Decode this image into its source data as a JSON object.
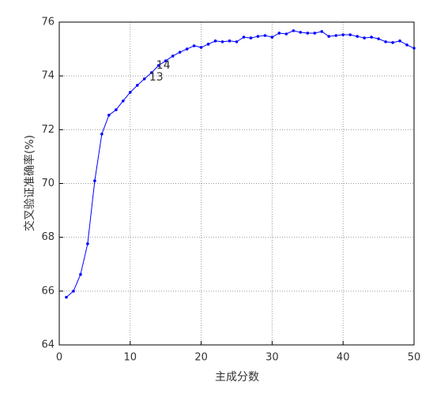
{
  "chart_data": {
    "type": "line",
    "x_label": "主成分数",
    "y_label": "交叉验证准确率(%)",
    "x": [
      1,
      2,
      3,
      4,
      5,
      6,
      7,
      8,
      9,
      10,
      11,
      12,
      13,
      14,
      15,
      16,
      17,
      18,
      19,
      20,
      21,
      22,
      23,
      24,
      25,
      26,
      27,
      28,
      29,
      30,
      31,
      32,
      33,
      34,
      35,
      36,
      37,
      38,
      39,
      40,
      41,
      42,
      43,
      44,
      45,
      46,
      47,
      48,
      49,
      50
    ],
    "series": [
      {
        "color": "#0000ff",
        "values": [
          65.77,
          66.0,
          66.62,
          67.76,
          70.1,
          71.84,
          72.54,
          72.74,
          73.07,
          73.39,
          73.65,
          73.89,
          74.12,
          74.39,
          74.56,
          74.74,
          74.88,
          75.0,
          75.12,
          75.06,
          75.18,
          75.3,
          75.27,
          75.3,
          75.27,
          75.44,
          75.41,
          75.47,
          75.5,
          75.44,
          75.59,
          75.56,
          75.68,
          75.62,
          75.59,
          75.59,
          75.65,
          75.47,
          75.5,
          75.53,
          75.53,
          75.47,
          75.41,
          75.44,
          75.38,
          75.27,
          75.24,
          75.3,
          75.15,
          75.03
        ]
      }
    ],
    "annotations": [
      {
        "text": "13",
        "x": 13,
        "color": "#000000"
      },
      {
        "text": "14",
        "x": 14,
        "color": "#ff0000"
      }
    ],
    "xlim": [
      0,
      50
    ],
    "xticks": [
      0,
      10,
      20,
      30,
      40,
      50
    ],
    "ylim": [
      64,
      76
    ],
    "yticks": [
      64,
      66,
      68,
      70,
      72,
      74,
      76
    ],
    "grid": true
  }
}
